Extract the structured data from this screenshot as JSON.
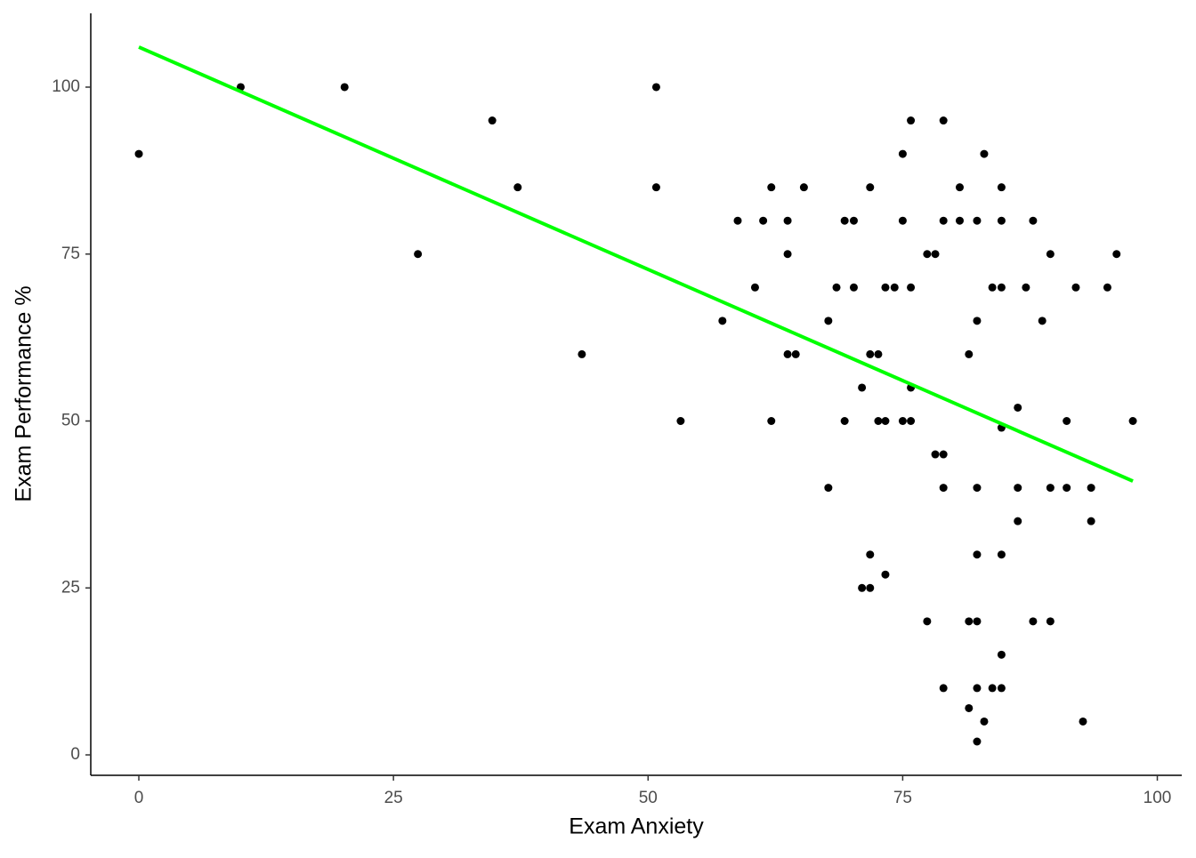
{
  "chart_data": {
    "type": "scatter",
    "xlabel": "Exam Anxiety",
    "ylabel": "Exam Performance %",
    "x": [
      0,
      10,
      20.2,
      27.4,
      34.7,
      37.2,
      43.5,
      50.8,
      50.8,
      53.2,
      57.3,
      58.8,
      60.5,
      61.3,
      62.1,
      62.1,
      63.7,
      63.7,
      63.7,
      64.5,
      65.3,
      67.7,
      67.7,
      68.5,
      69.3,
      69.3,
      70.2,
      70.2,
      71.0,
      71.0,
      71.8,
      71.8,
      71.8,
      71.8,
      72.6,
      72.6,
      73.3,
      73.3,
      73.3,
      74.2,
      75.0,
      75.0,
      75.0,
      75.8,
      75.8,
      75.8,
      75.8,
      77.4,
      77.4,
      78.2,
      78.2,
      79.0,
      79.0,
      79.0,
      79.0,
      79.0,
      80.6,
      80.6,
      81.5,
      81.5,
      81.5,
      82.3,
      82.3,
      82.3,
      82.3,
      82.3,
      82.3,
      82.3,
      83.0,
      83.0,
      83.8,
      83.8,
      84.7,
      84.7,
      84.7,
      84.7,
      84.7,
      84.7,
      84.7,
      86.3,
      86.3,
      86.3,
      87.1,
      87.8,
      87.8,
      88.7,
      89.5,
      89.5,
      89.5,
      91.1,
      91.1,
      92.0,
      92.7,
      93.5,
      93.5,
      95.1,
      96.0,
      97.6
    ],
    "y": [
      90,
      100,
      100,
      75,
      95,
      85,
      60,
      100,
      85,
      50,
      65,
      80,
      70,
      80,
      85,
      50,
      80,
      75,
      60,
      60,
      85,
      65,
      40,
      70,
      80,
      50,
      80,
      70,
      55,
      25,
      85,
      60,
      30,
      25,
      60,
      50,
      70,
      50,
      27,
      70,
      90,
      80,
      50,
      95,
      70,
      55,
      50,
      75,
      20,
      75,
      45,
      95,
      80,
      45,
      40,
      10,
      85,
      80,
      60,
      20,
      7,
      80,
      65,
      40,
      30,
      20,
      10,
      2,
      90,
      5,
      70,
      10,
      85,
      80,
      70,
      49,
      30,
      15,
      10,
      52,
      40,
      35,
      70,
      80,
      20,
      65,
      75,
      40,
      20,
      50,
      40,
      70,
      5,
      40,
      35,
      70,
      75,
      50
    ],
    "color": "#000000",
    "fit_line": {
      "x": [
        0,
        97.6
      ],
      "y": [
        106,
        41
      ],
      "color": "#00ff00"
    },
    "xlim": [
      -4.72,
      102.4
    ],
    "ylim": [
      -3.06,
      111.05
    ],
    "xticks": [
      0,
      25,
      50,
      75,
      100
    ],
    "yticks": [
      0,
      25,
      50,
      75,
      100
    ],
    "grid": false
  }
}
